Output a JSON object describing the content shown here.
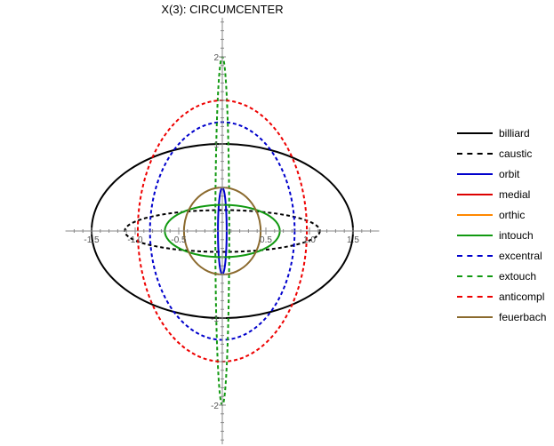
{
  "chart_data": {
    "type": "line",
    "title": "X(3): CIRCUMCENTER",
    "xlabel": "",
    "ylabel": "",
    "xlim": [
      -1.8,
      1.8
    ],
    "ylim": [
      -2.45,
      2.45
    ],
    "grid": false,
    "legend_position": "right",
    "x_ticks": [
      {
        "value": -1.5,
        "label": "-1.5"
      },
      {
        "value": -1.0,
        "label": "-1.0"
      },
      {
        "value": -0.5,
        "label": "-0.5"
      },
      {
        "value": 0.5,
        "label": "0.5"
      },
      {
        "value": 1.0,
        "label": "1.0"
      },
      {
        "value": 1.5,
        "label": "1.5"
      }
    ],
    "y_ticks": [
      {
        "value": -2,
        "label": "-2"
      },
      {
        "value": -1,
        "label": "-1"
      },
      {
        "value": 1,
        "label": "1"
      },
      {
        "value": 2,
        "label": "2"
      }
    ],
    "series": [
      {
        "name": "billiard",
        "color": "#000000",
        "dashed": false,
        "center": [
          0,
          0
        ],
        "semi_axes": [
          1.5,
          1.0
        ]
      },
      {
        "name": "caustic",
        "color": "#000000",
        "dashed": true,
        "center": [
          0,
          0
        ],
        "semi_axes": [
          1.12,
          0.24
        ]
      },
      {
        "name": "orbit",
        "color": "#0000cc",
        "dashed": false,
        "center": [
          0,
          0
        ],
        "semi_axes": [
          0.05,
          0.5
        ]
      },
      {
        "name": "medial",
        "color": "#dd0000",
        "dashed": false,
        "center": [
          0,
          0
        ],
        "semi_axes": [
          0,
          0
        ]
      },
      {
        "name": "orthic",
        "color": "#ff8800",
        "dashed": false,
        "center": [
          0,
          0
        ],
        "semi_axes": [
          0,
          0
        ]
      },
      {
        "name": "intouch",
        "color": "#119911",
        "dashed": false,
        "center": [
          0,
          0
        ],
        "semi_axes": [
          0.66,
          0.3
        ]
      },
      {
        "name": "excentral",
        "color": "#0000cc",
        "dashed": true,
        "center": [
          0,
          0
        ],
        "semi_axes": [
          0.83,
          1.25
        ]
      },
      {
        "name": "extouch",
        "color": "#119911",
        "dashed": true,
        "center": [
          0,
          0
        ],
        "semi_axes": [
          0.08,
          2.0
        ]
      },
      {
        "name": "anticompl",
        "color": "#ee0000",
        "dashed": true,
        "center": [
          0,
          0
        ],
        "semi_axes": [
          0.97,
          1.5
        ]
      },
      {
        "name": "feuerbach",
        "color": "#8b6a2e",
        "dashed": false,
        "center": [
          0,
          0
        ],
        "semi_axes": [
          0.44,
          0.5
        ]
      }
    ]
  }
}
